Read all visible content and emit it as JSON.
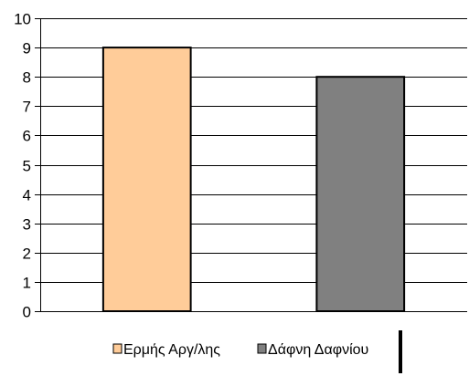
{
  "chart_data": {
    "type": "bar",
    "categories": [
      "Ερμής Αργ/λης",
      "Δάφνη Δαφνίου"
    ],
    "values": [
      9,
      8
    ],
    "colors": [
      "#ffcc99",
      "#808080"
    ],
    "ylim": [
      0,
      10
    ],
    "yticks": [
      "0",
      "1",
      "2",
      "3",
      "4",
      "5",
      "6",
      "7",
      "8",
      "9",
      "10"
    ],
    "grid": true,
    "legend": {
      "position": "bottom",
      "entries": [
        {
          "label": "Ερμής Αργ/λης",
          "color": "#ffcc99"
        },
        {
          "label": "Δάφνη Δαφνίου",
          "color": "#808080"
        }
      ]
    }
  }
}
